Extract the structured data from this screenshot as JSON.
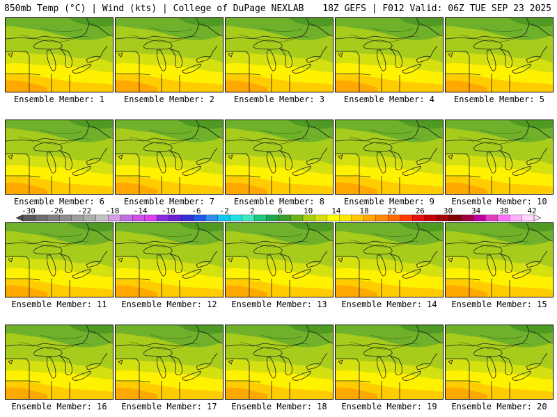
{
  "header": {
    "left": "850mb Temp (°C) | Wind (kts) | College of DuPage NEXLAB",
    "right": "18Z GEFS | F012 Valid: 06Z TUE SEP 23 2025"
  },
  "member_label_prefix": "Ensemble Member: ",
  "members": [
    1,
    2,
    3,
    4,
    5,
    6,
    7,
    8,
    9,
    10,
    11,
    12,
    13,
    14,
    15,
    16,
    17,
    18,
    19,
    20
  ],
  "colorbar": {
    "ticks": [
      "-30",
      "-26",
      "-22",
      "-18",
      "-14",
      "-10",
      "-6",
      "-2",
      "2",
      "6",
      "10",
      "14",
      "18",
      "22",
      "26",
      "30",
      "34",
      "38",
      "42"
    ],
    "colors": [
      "#5a5a5a",
      "#6e6e6e",
      "#7f7f7f",
      "#8f8f8f",
      "#9f9f9f",
      "#afafaf",
      "#c4c4c4",
      "#d4a0e6",
      "#c070e0",
      "#d050e8",
      "#e040f0",
      "#8a2be2",
      "#6a1fd0",
      "#3a2fd8",
      "#1f5ae8",
      "#2f8cf0",
      "#10c8f0",
      "#20e0e0",
      "#40e8c0",
      "#20c880",
      "#20a850",
      "#3c9c2c",
      "#6cb41c",
      "#a8d010",
      "#d4e010",
      "#ffff00",
      "#ffe800",
      "#ffc800",
      "#ffa800",
      "#ff8c00",
      "#ff6a00",
      "#ff3a00",
      "#e81010",
      "#c80000",
      "#a00000",
      "#800000",
      "#a00040",
      "#c000a0",
      "#e040c0",
      "#ff70ff",
      "#ffb0ff",
      "#ffd8ff"
    ]
  }
}
